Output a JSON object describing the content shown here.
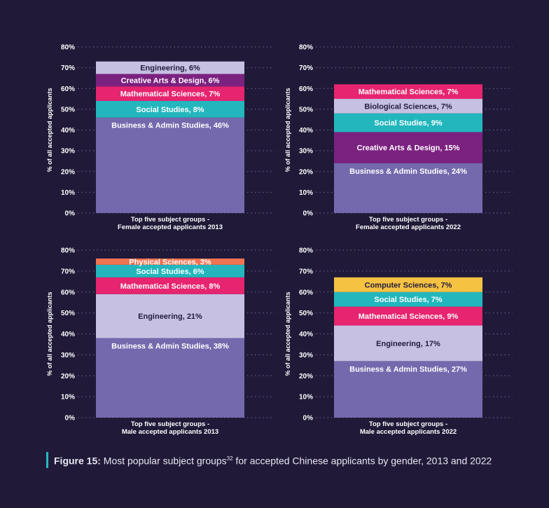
{
  "y_axis_label": "% of all accepted applicants",
  "caption": {
    "label": "Figure 15:",
    "text": "Most popular subject groups",
    "superscript": "32",
    "text_after": " for accepted Chinese applicants by gender, 2013 and 2022"
  },
  "colors": {
    "Business & Admin Studies": "#7469ad",
    "Social Studies": "#23b7bd",
    "Mathematical Sciences": "#e6246f",
    "Creative Arts & Design": "#7b2180",
    "Engineering": "#c6c1e2",
    "Biological Sciences": "#c6c1e2",
    "Physical Sciences": "#f07452",
    "Computer Sciences": "#f5c242"
  },
  "chart_data": [
    {
      "type": "bar",
      "stacked": true,
      "title": "Top five subject groups - Female accepted applicants 2013",
      "title_lines": [
        "Top five subject groups -",
        "Female accepted applicants 2013"
      ],
      "ylabel": "% of all accepted applicants",
      "ylim": [
        0,
        80
      ],
      "yticks": [
        "0%",
        "10%",
        "20%",
        "30%",
        "40%",
        "50%",
        "60%",
        "70%",
        "80%"
      ],
      "grid": true,
      "series": [
        {
          "name": "Business & Admin Studies",
          "value": 46,
          "label": "Business & Admin Studies, 46%"
        },
        {
          "name": "Social Studies",
          "value": 8,
          "label": "Social Studies, 8%"
        },
        {
          "name": "Mathematical Sciences",
          "value": 7,
          "label": "Mathematical Sciences, 7%"
        },
        {
          "name": "Creative Arts & Design",
          "value": 6,
          "label": "Creative Arts & Design, 6%"
        },
        {
          "name": "Engineering",
          "value": 6,
          "label": "Engineering, 6%"
        }
      ]
    },
    {
      "type": "bar",
      "stacked": true,
      "title": "Top five subject groups - Female accepted applicants 2022",
      "title_lines": [
        "Top five subject groups -",
        "Female accepted applicants 2022"
      ],
      "ylabel": "% of all accepted applicants",
      "ylim": [
        0,
        80
      ],
      "yticks": [
        "0%",
        "10%",
        "20%",
        "30%",
        "40%",
        "50%",
        "60%",
        "70%",
        "80%"
      ],
      "grid": true,
      "series": [
        {
          "name": "Business & Admin Studies",
          "value": 24,
          "label": "Business & Admin Studies, 24%"
        },
        {
          "name": "Creative Arts & Design",
          "value": 15,
          "label": "Creative Arts & Design, 15%"
        },
        {
          "name": "Social Studies",
          "value": 9,
          "label": "Social Studies, 9%"
        },
        {
          "name": "Biological Sciences",
          "value": 7,
          "label": "Biological Sciences, 7%"
        },
        {
          "name": "Mathematical Sciences",
          "value": 7,
          "label": "Mathematical Sciences, 7%"
        }
      ]
    },
    {
      "type": "bar",
      "stacked": true,
      "title": "Top five subject groups - Male accepted applicants 2013",
      "title_lines": [
        "Top five subject groups -",
        "Male accepted applicants 2013"
      ],
      "ylabel": "% of all accepted applicants",
      "ylim": [
        0,
        80
      ],
      "yticks": [
        "0%",
        "10%",
        "20%",
        "30%",
        "40%",
        "50%",
        "60%",
        "70%",
        "80%"
      ],
      "grid": true,
      "series": [
        {
          "name": "Business & Admin Studies",
          "value": 38,
          "label": "Business & Admin Studies, 38%"
        },
        {
          "name": "Engineering",
          "value": 21,
          "label": "Engineering, 21%"
        },
        {
          "name": "Mathematical Sciences",
          "value": 8,
          "label": "Mathematical Sciences, 8%"
        },
        {
          "name": "Social Studies",
          "value": 6,
          "label": "Social Studies, 6%"
        },
        {
          "name": "Physical Sciences",
          "value": 3,
          "label": "Physical Sciences, 3%"
        }
      ]
    },
    {
      "type": "bar",
      "stacked": true,
      "title": "Top five subject groups - Male accepted applicants 2022",
      "title_lines": [
        "Top five subject groups -",
        "Male accepted applicants 2022"
      ],
      "ylabel": "% of all accepted applicants",
      "ylim": [
        0,
        80
      ],
      "yticks": [
        "0%",
        "10%",
        "20%",
        "30%",
        "40%",
        "50%",
        "60%",
        "70%",
        "80%"
      ],
      "grid": true,
      "series": [
        {
          "name": "Business & Admin Studies",
          "value": 27,
          "label": "Business & Admin Studies, 27%"
        },
        {
          "name": "Engineering",
          "value": 17,
          "label": "Engineering, 17%"
        },
        {
          "name": "Mathematical Sciences",
          "value": 9,
          "label": "Mathematical Sciences, 9%"
        },
        {
          "name": "Social Studies",
          "value": 7,
          "label": "Social Studies, 7%"
        },
        {
          "name": "Computer Sciences",
          "value": 7,
          "label": "Computer Sciences, 7%"
        }
      ]
    }
  ]
}
